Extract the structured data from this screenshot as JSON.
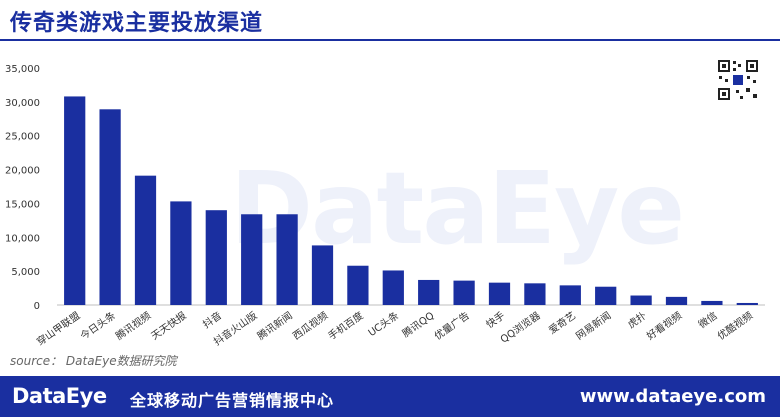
{
  "title": "传奇类游戏主要投放渠道",
  "watermark": "DataEye",
  "source": "source：  DataEye数据研究院",
  "footer": {
    "logo": "DataEye",
    "slogan": "全球移动广告营销情报中心",
    "url": "www.dataeye.com"
  },
  "colors": {
    "bar": "#1a2fa0",
    "brand": "#1a2fa0"
  },
  "chart_data": {
    "type": "bar",
    "categories": [
      "穿山甲联盟",
      "今日头条",
      "腾讯视频",
      "天天快报",
      "抖音",
      "抖音火山版",
      "腾讯新闻",
      "西瓜视频",
      "手机百度",
      "UC头条",
      "腾讯QQ",
      "优量广告",
      "快手",
      "QQ浏览器",
      "爱奇艺",
      "网易新闻",
      "虎扑",
      "好看视频",
      "微信",
      "优酷视频"
    ],
    "values": [
      30800,
      28900,
      19100,
      15300,
      14000,
      13400,
      13400,
      8800,
      5800,
      5100,
      3700,
      3600,
      3300,
      3200,
      2900,
      2700,
      1400,
      1200,
      600,
      300
    ],
    "yticks": [
      "0",
      "5,000",
      "10,000",
      "15,000",
      "20,000",
      "25,000",
      "30,000",
      "35,000"
    ],
    "ylim": [
      0,
      35000
    ],
    "grid": false
  }
}
